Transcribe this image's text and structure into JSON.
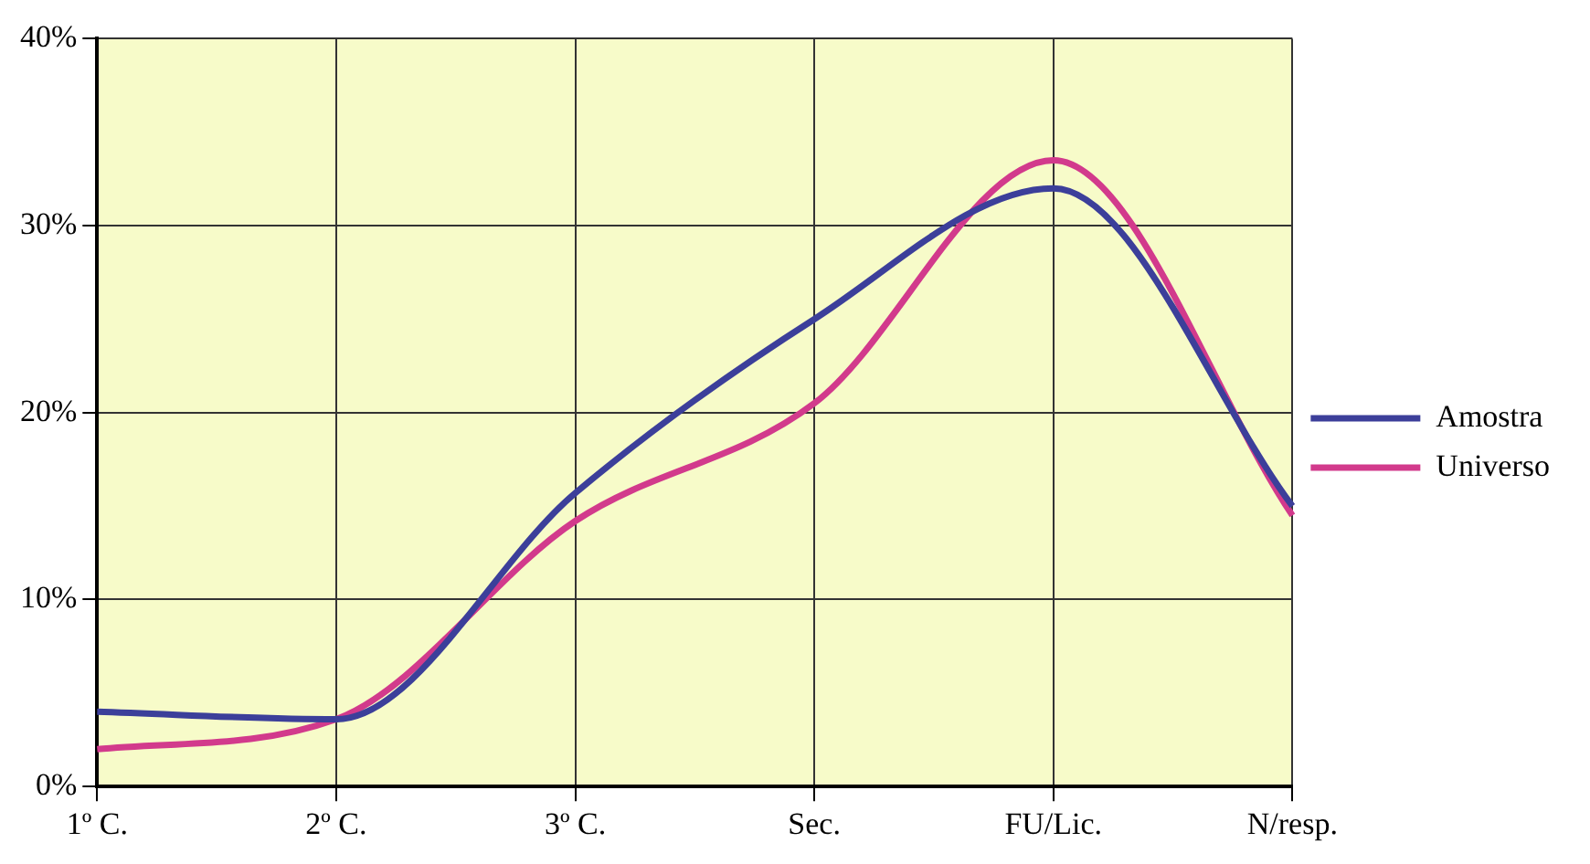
{
  "chart_data": {
    "type": "line",
    "categories": [
      "1º C.",
      "2º C.",
      "3º C.",
      "Sec.",
      "FU/Lic.",
      "N/resp."
    ],
    "series": [
      {
        "name": "Amostra",
        "color": "#3c3f9a",
        "values": [
          4,
          3.6,
          15.7,
          25,
          32,
          15
        ]
      },
      {
        "name": "Universo",
        "color": "#d23a8c",
        "values": [
          2,
          3.6,
          14.2,
          20.5,
          33.5,
          14.5
        ]
      }
    ],
    "ylim": [
      0,
      40
    ],
    "yticks": [
      {
        "value": 0,
        "label": "0%"
      },
      {
        "value": 10,
        "label": "10%"
      },
      {
        "value": 20,
        "label": "20%"
      },
      {
        "value": 30,
        "label": "30%"
      },
      {
        "value": 40,
        "label": "40%"
      }
    ],
    "grid": true,
    "legend": "right",
    "marker": "none"
  }
}
